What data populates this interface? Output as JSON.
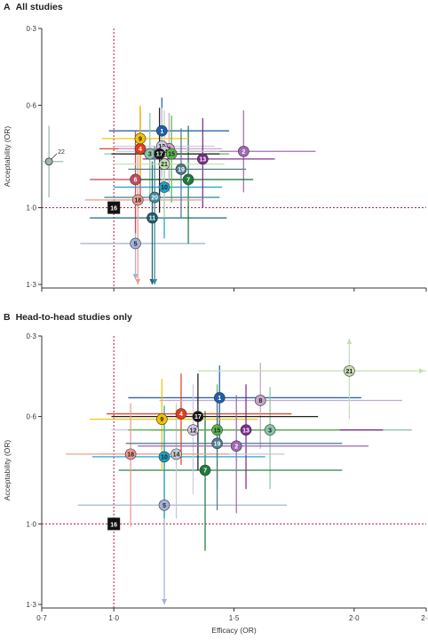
{
  "panels": [
    {
      "letter": "A",
      "title": "All studies"
    },
    {
      "letter": "B",
      "title": "Head-to-head studies only"
    }
  ],
  "colors": {
    "1": "#1f5fa8",
    "2": "#a069b5",
    "3": "#86c5a5",
    "4": "#e63c1f",
    "5": "#a3b1d6",
    "6": "#c24b5e",
    "7": "#1e7a3c",
    "8": "#c9a3c9",
    "9": "#f2c200",
    "10": "#1aa3c9",
    "11": "#1c5e6b",
    "12": "#d4c6e6",
    "13": "#7a2b8c",
    "14": "#c1c8ce",
    "15": "#58b84a",
    "16": "#111111",
    "17": "#161616",
    "18": "#ee9a8f",
    "19": "#4d7a8c",
    "20": "#3e8a9e",
    "21": "#c6dfae",
    "22": "#9cb8b0",
    "ref_line": "#c3123f",
    "axis": "#333333",
    "tick": "#333333"
  },
  "chart_data": [
    {
      "type": "scatter",
      "panel": "A",
      "xlabel": "",
      "ylabel": "Acceptability (OR)",
      "xlim": [
        0.7,
        2.3
      ],
      "ylim": [
        0.3,
        1.3
      ],
      "y_ticks": [
        "0·3",
        "0·6",
        "1·0",
        "1·3"
      ],
      "x_ticks": [],
      "reference": {
        "x": 1.0,
        "y": 1.0
      },
      "points": [
        {
          "label": "1",
          "x": 1.2,
          "y": 0.7,
          "xlo": 0.98,
          "xhi": 1.48,
          "ylo": 0.57,
          "yhi": 0.88
        },
        {
          "label": "2",
          "x": 1.54,
          "y": 0.78,
          "xlo": 1.3,
          "xhi": 1.84,
          "ylo": 0.62,
          "yhi": 0.94
        },
        {
          "label": "3",
          "x": 1.15,
          "y": 0.79,
          "xlo": 0.96,
          "xhi": 1.38,
          "ylo": 0.63,
          "yhi": 0.98
        },
        {
          "label": "4",
          "x": 1.11,
          "y": 0.77,
          "xlo": 0.94,
          "xhi": 1.3,
          "ylo": 0.61,
          "yhi": 0.98
        },
        {
          "label": "5",
          "x": 1.09,
          "y": 1.14,
          "xlo": 0.86,
          "xhi": 1.38,
          "ylo": 0.97,
          "yhi": 1.28
        },
        {
          "label": "6",
          "x": 1.09,
          "y": 0.89,
          "xlo": 0.9,
          "xhi": 1.28,
          "ylo": 0.7,
          "yhi": 1.1
        },
        {
          "label": "7",
          "x": 1.31,
          "y": 0.89,
          "xlo": 1.08,
          "xhi": 1.58,
          "ylo": 0.68,
          "yhi": 1.14
        },
        {
          "label": "8",
          "x": 1.23,
          "y": 0.77,
          "xlo": 1.02,
          "xhi": 1.45,
          "ylo": 0.63,
          "yhi": 0.94
        },
        {
          "label": "9",
          "x": 1.11,
          "y": 0.73,
          "xlo": 0.95,
          "xhi": 1.31,
          "ylo": 0.6,
          "yhi": 0.88
        },
        {
          "label": "10",
          "x": 1.21,
          "y": 0.92,
          "xlo": 1.0,
          "xhi": 1.45,
          "ylo": 0.75,
          "yhi": 1.12
        },
        {
          "label": "11",
          "x": 1.16,
          "y": 1.04,
          "xlo": 0.9,
          "xhi": 1.47,
          "ylo": 0.82,
          "yhi": 1.31
        },
        {
          "label": "12",
          "x": 1.2,
          "y": 0.76,
          "xlo": 1.0,
          "xhi": 1.42,
          "ylo": 0.61,
          "yhi": 0.94
        },
        {
          "label": "13",
          "x": 1.37,
          "y": 0.81,
          "xlo": 1.12,
          "xhi": 1.67,
          "ylo": 0.65,
          "yhi": 1.0
        },
        {
          "label": "14",
          "x": 1.21,
          "y": 0.78,
          "xlo": 1.01,
          "xhi": 1.44,
          "ylo": 0.62,
          "yhi": 0.96
        },
        {
          "label": "15",
          "x": 1.24,
          "y": 0.79,
          "xlo": 1.03,
          "xhi": 1.48,
          "ylo": 0.64,
          "yhi": 0.98
        },
        {
          "label": "16",
          "x": 1.0,
          "y": 1.0
        },
        {
          "label": "17",
          "x": 1.19,
          "y": 0.79,
          "xlo": 0.99,
          "xhi": 1.44,
          "ylo": 0.61,
          "yhi": 1.02
        },
        {
          "label": "18",
          "x": 1.1,
          "y": 0.97,
          "xlo": 0.88,
          "xhi": 1.37,
          "ylo": 0.77,
          "yhi": 1.31
        },
        {
          "label": "19",
          "x": 1.28,
          "y": 0.85,
          "xlo": 1.06,
          "xhi": 1.55,
          "ylo": 0.69,
          "yhi": 1.04
        },
        {
          "label": "20",
          "x": 1.17,
          "y": 0.96,
          "xlo": 0.96,
          "xhi": 1.44,
          "ylo": 0.76,
          "yhi": 1.31
        },
        {
          "label": "21",
          "x": 1.21,
          "y": 0.83,
          "xlo": 1.0,
          "xhi": 1.46,
          "ylo": 0.66,
          "yhi": 1.04
        },
        {
          "label": "22",
          "x": 0.73,
          "y": 0.82,
          "xlo": 0.7,
          "xhi": 0.79,
          "ylo": 0.68,
          "yhi": 0.96
        }
      ]
    },
    {
      "type": "scatter",
      "panel": "B",
      "xlabel": "Efficacy (OR)",
      "ylabel": "Acceptability (OR)",
      "xlim": [
        0.7,
        2.3
      ],
      "ylim": [
        0.3,
        1.3
      ],
      "y_ticks": [
        "0·3",
        "0·6",
        "1·0",
        "1·3"
      ],
      "x_ticks": [
        "0·7",
        "1·0",
        "1·5",
        "2·0",
        "2·3"
      ],
      "reference": {
        "x": 1.0,
        "y": 1.0
      },
      "points": [
        {
          "label": "1",
          "x": 1.44,
          "y": 0.53,
          "xlo": 1.06,
          "xhi": 2.03,
          "ylo": 0.41,
          "yhi": 0.7
        },
        {
          "label": "3",
          "x": 1.65,
          "y": 0.65,
          "xlo": 1.22,
          "xhi": 2.24,
          "ylo": 0.49,
          "yhi": 0.87
        },
        {
          "label": "4",
          "x": 1.28,
          "y": 0.59,
          "xlo": 0.97,
          "xhi": 1.74,
          "ylo": 0.44,
          "yhi": 0.78
        },
        {
          "label": "5",
          "x": 1.21,
          "y": 0.93,
          "xlo": 0.85,
          "xhi": 1.72,
          "ylo": 0.71,
          "yhi": 1.3
        },
        {
          "label": "7",
          "x": 1.38,
          "y": 0.8,
          "xlo": 1.02,
          "xhi": 1.95,
          "ylo": 0.58,
          "yhi": 1.1
        },
        {
          "label": "8",
          "x": 1.61,
          "y": 0.54,
          "xlo": 1.19,
          "xhi": 2.2,
          "ylo": 0.4,
          "yhi": 0.72
        },
        {
          "label": "9",
          "x": 1.2,
          "y": 0.61,
          "xlo": 0.9,
          "xhi": 1.6,
          "ylo": 0.46,
          "yhi": 0.8
        },
        {
          "label": "10",
          "x": 1.21,
          "y": 0.75,
          "xlo": 0.91,
          "xhi": 1.63,
          "ylo": 0.56,
          "yhi": 0.98
        },
        {
          "label": "12",
          "x": 1.33,
          "y": 0.65,
          "xlo": 0.99,
          "xhi": 1.8,
          "ylo": 0.48,
          "yhi": 0.89
        },
        {
          "label": "13",
          "x": 1.55,
          "y": 0.65,
          "xlo": 1.15,
          "xhi": 2.12,
          "ylo": 0.48,
          "yhi": 0.87
        },
        {
          "label": "14",
          "x": 1.26,
          "y": 0.74,
          "xlo": 0.94,
          "xhi": 1.71,
          "ylo": 0.55,
          "yhi": 0.98
        },
        {
          "label": "15",
          "x": 1.43,
          "y": 0.65,
          "xlo": 1.06,
          "xhi": 1.94,
          "ylo": 0.48,
          "yhi": 0.87
        },
        {
          "label": "16",
          "x": 1.0,
          "y": 1.0
        },
        {
          "label": "17",
          "x": 1.35,
          "y": 0.6,
          "xlo": 0.99,
          "xhi": 1.85,
          "ylo": 0.44,
          "yhi": 0.8
        },
        {
          "label": "18",
          "x": 1.07,
          "y": 0.74,
          "xlo": 0.8,
          "xhi": 1.48,
          "ylo": 0.55,
          "yhi": 1.01
        },
        {
          "label": "19",
          "x": 1.43,
          "y": 0.7,
          "xlo": 1.05,
          "xhi": 1.95,
          "ylo": 0.51,
          "yhi": 0.95
        },
        {
          "label": "2",
          "x": 1.51,
          "y": 0.71,
          "xlo": 1.1,
          "xhi": 2.06,
          "ylo": 0.52,
          "yhi": 0.96
        },
        {
          "label": "21",
          "x": 1.98,
          "y": 0.43,
          "xlo": 1.35,
          "xhi": 2.3,
          "ylo": 0.31,
          "yhi": 0.61
        }
      ]
    }
  ]
}
